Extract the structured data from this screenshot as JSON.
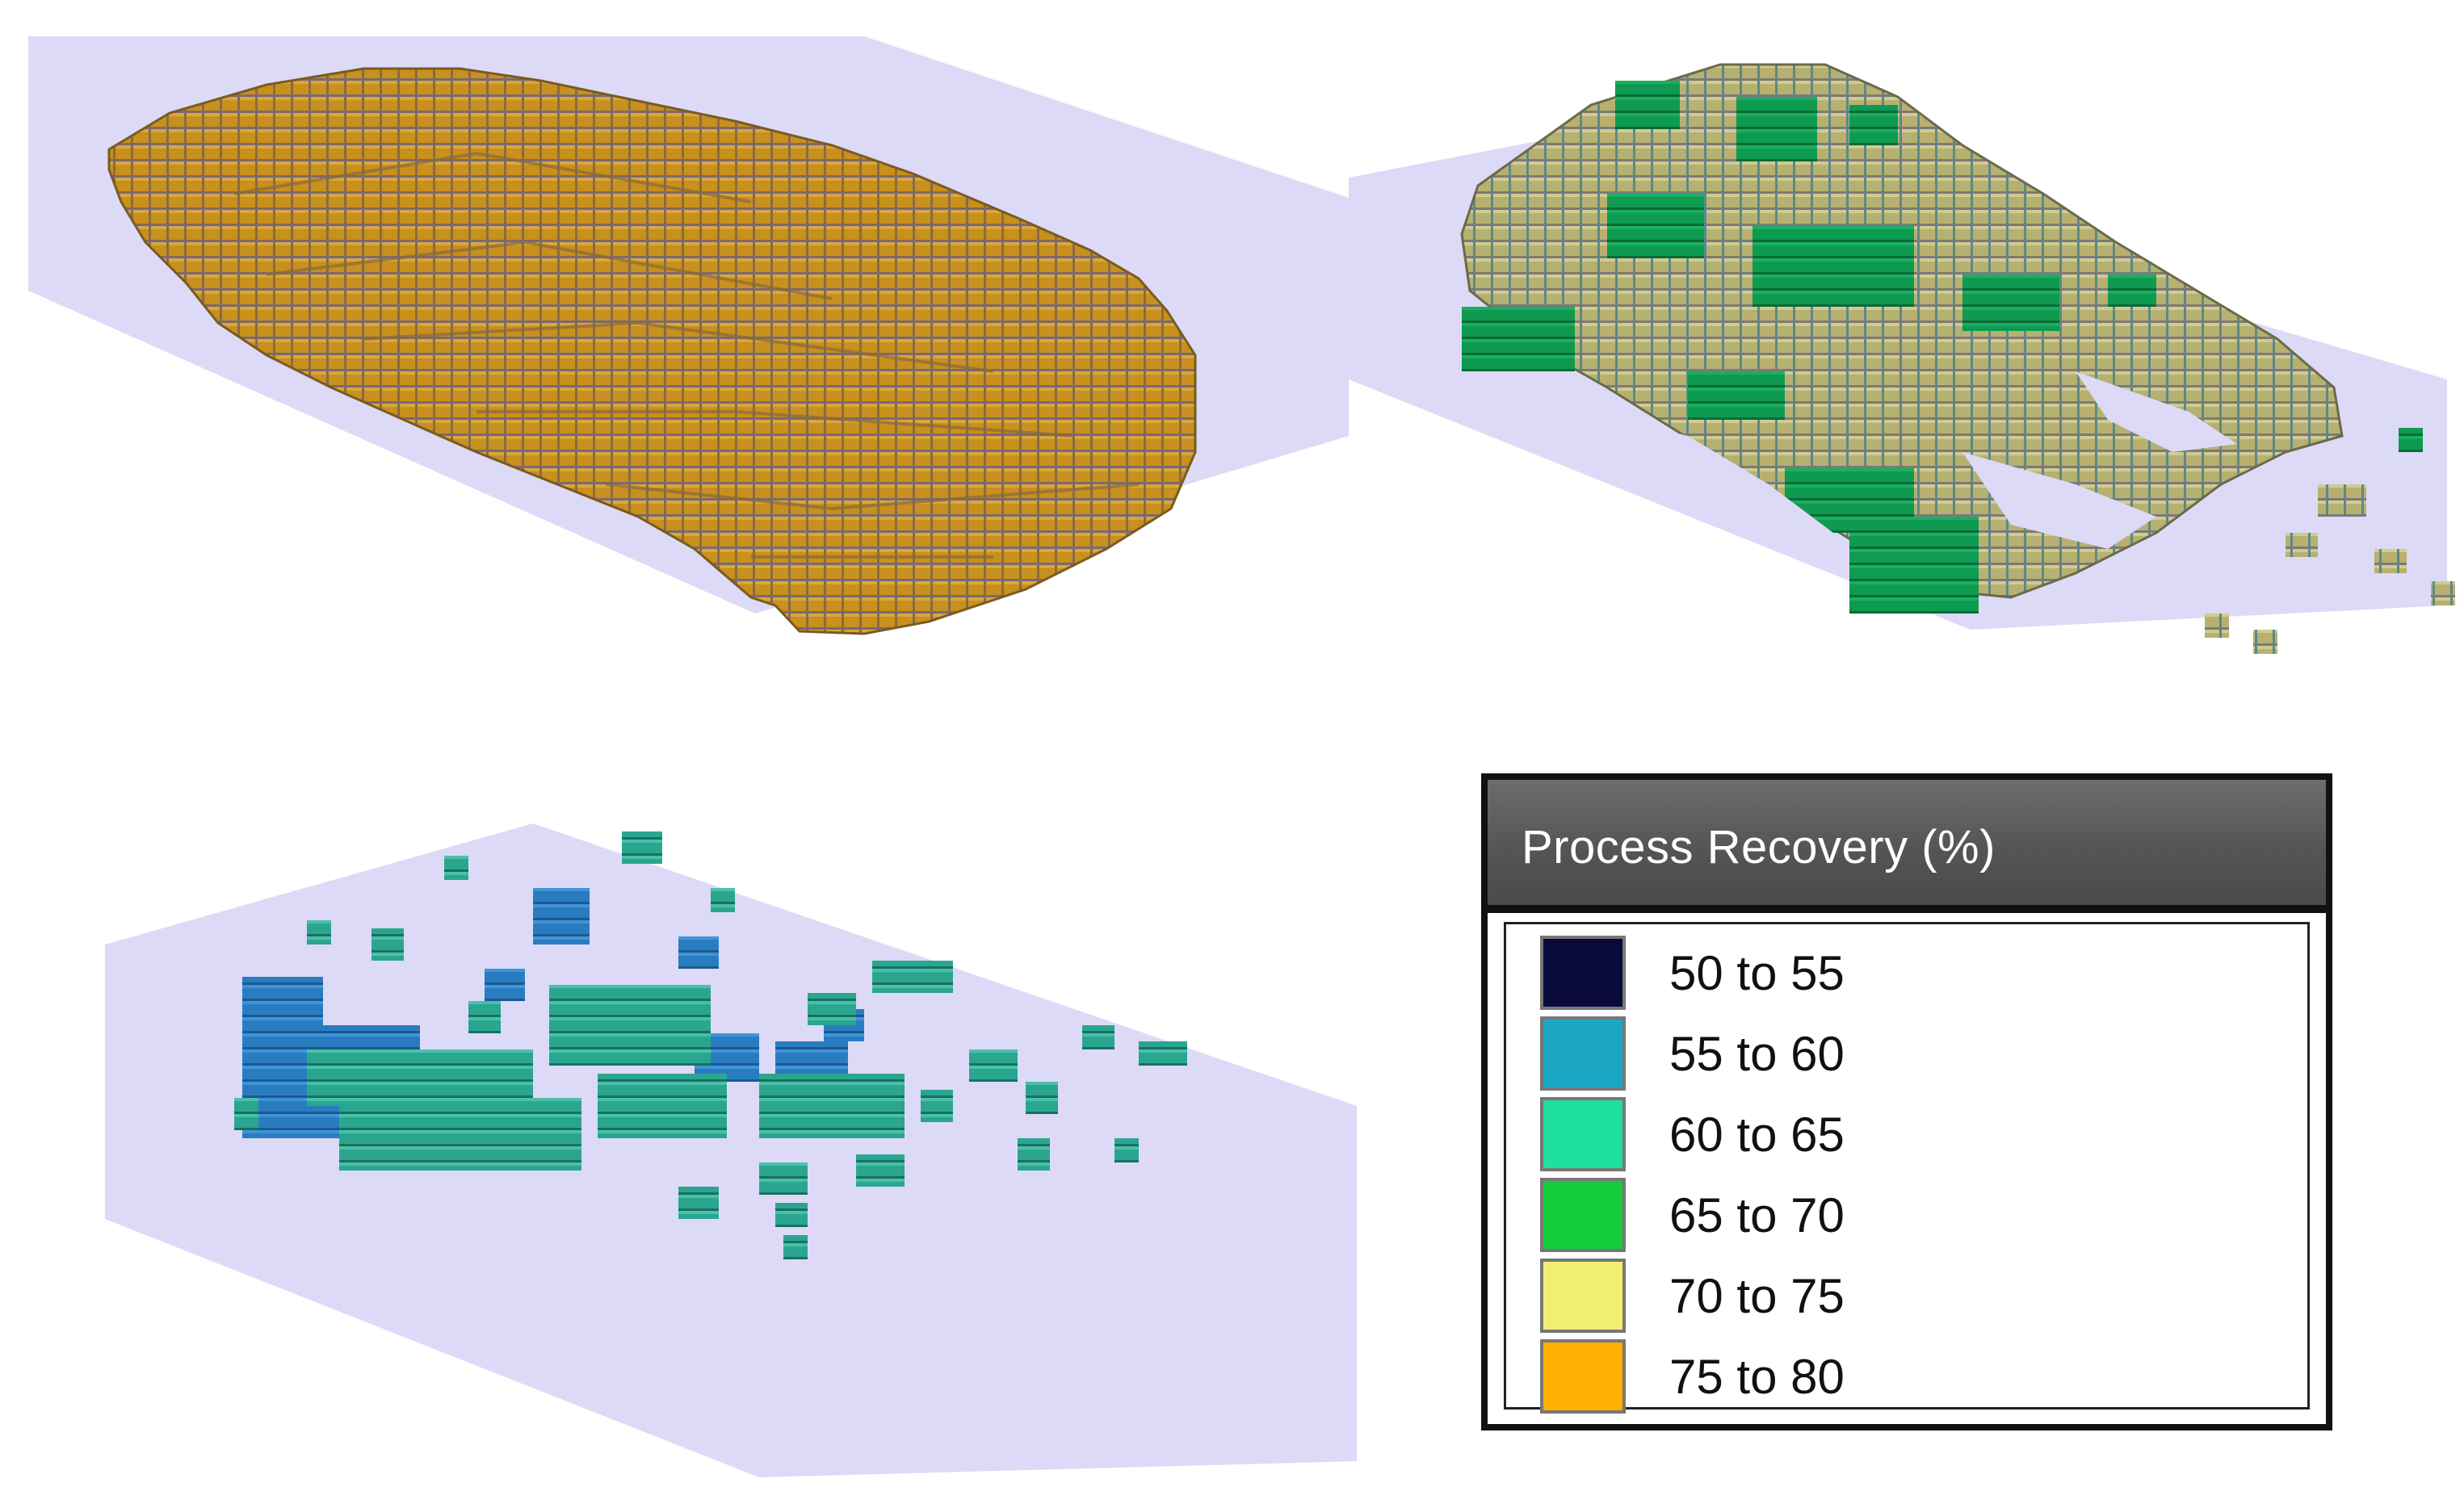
{
  "legend": {
    "title": "Process Recovery (%)",
    "items": [
      {
        "label": "50 to 55",
        "color": "#0a0a3a"
      },
      {
        "label": "55 to 60",
        "color": "#1ba6c4"
      },
      {
        "label": "60 to 65",
        "color": "#1fe0a0"
      },
      {
        "label": "65 to 70",
        "color": "#12cc3c"
      },
      {
        "label": "70 to 75",
        "color": "#f0f070"
      },
      {
        "label": "75 to 80",
        "color": "#ffb000"
      }
    ]
  },
  "colors": {
    "plane": "#dcdaf6",
    "ore_orange": "#c8901c",
    "ore_tan": "#b8b070",
    "ore_green": "#0e9a50",
    "ore_blue": "#2a7cc0",
    "ore_teal": "#2aa690"
  }
}
